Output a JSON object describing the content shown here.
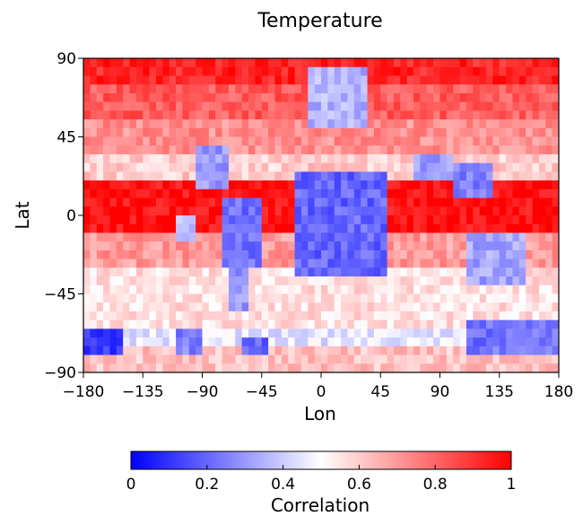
{
  "chart_data": {
    "type": "heatmap",
    "title": "Temperature",
    "xlabel": "Lon",
    "ylabel": "Lat",
    "xlim": [
      -180,
      180
    ],
    "ylim": [
      -90,
      90
    ],
    "xticks": [
      -180,
      -135,
      -90,
      -45,
      0,
      45,
      90,
      135,
      180
    ],
    "xtick_labels": [
      "−180",
      "−135",
      "−90",
      "−45",
      "0",
      "45",
      "90",
      "135",
      "180"
    ],
    "yticks": [
      90,
      45,
      0,
      -45,
      -90
    ],
    "ytick_labels": [
      "90",
      "45",
      "0",
      "−45",
      "−90"
    ],
    "grid": false,
    "colorbar": {
      "label": "Correlation",
      "range": [
        0,
        1
      ],
      "ticks": [
        0,
        0.2,
        0.4,
        0.6,
        0.8,
        1
      ],
      "tick_labels": [
        "0",
        "0.2",
        "0.4",
        "0.6",
        "0.8",
        "1"
      ],
      "colors": [
        "#0000ff",
        "#ffffff",
        "#ff0000"
      ],
      "placement": "bottom"
    },
    "grid_resolution_deg": 5,
    "bands": [
      {
        "lat": [
          75,
          90
        ],
        "correlation": 0.93
      },
      {
        "lat": [
          55,
          75
        ],
        "correlation": 0.82
      },
      {
        "lat": [
          35,
          55
        ],
        "correlation": 0.72
      },
      {
        "lat": [
          20,
          35
        ],
        "correlation": 0.6
      },
      {
        "lat": [
          -12,
          20
        ],
        "correlation": 0.97
      },
      {
        "lat": [
          -30,
          -12
        ],
        "correlation": 0.7
      },
      {
        "lat": [
          -65,
          -30
        ],
        "correlation": 0.56
      },
      {
        "lat": [
          -75,
          -65
        ],
        "correlation": 0.45
      },
      {
        "lat": [
          -90,
          -75
        ],
        "correlation": 0.62
      }
    ],
    "regions": [
      {
        "lon": [
          -95,
          -70
        ],
        "lat": [
          15,
          40
        ],
        "correlation": 0.3
      },
      {
        "lon": [
          -75,
          -45
        ],
        "lat": [
          -30,
          10
        ],
        "correlation": 0.22
      },
      {
        "lon": [
          -70,
          -55
        ],
        "lat": [
          -55,
          -30
        ],
        "correlation": 0.3
      },
      {
        "lon": [
          -110,
          -95
        ],
        "lat": [
          -15,
          0
        ],
        "correlation": 0.35
      },
      {
        "lon": [
          -20,
          50
        ],
        "lat": [
          -35,
          25
        ],
        "correlation": 0.2
      },
      {
        "lon": [
          -10,
          35
        ],
        "lat": [
          50,
          85
        ],
        "correlation": 0.35
      },
      {
        "lon": [
          70,
          100
        ],
        "lat": [
          20,
          35
        ],
        "correlation": 0.3
      },
      {
        "lon": [
          100,
          130
        ],
        "lat": [
          10,
          30
        ],
        "correlation": 0.25
      },
      {
        "lon": [
          110,
          155
        ],
        "lat": [
          -40,
          -10
        ],
        "correlation": 0.32
      },
      {
        "lon": [
          -180,
          -150
        ],
        "lat": [
          -80,
          -65
        ],
        "correlation": 0.1
      },
      {
        "lon": [
          -110,
          -90
        ],
        "lat": [
          -80,
          -65
        ],
        "correlation": 0.25
      },
      {
        "lon": [
          -60,
          -40
        ],
        "lat": [
          -80,
          -70
        ],
        "correlation": 0.2
      },
      {
        "lon": [
          110,
          180
        ],
        "lat": [
          -78,
          -62
        ],
        "correlation": 0.22
      }
    ]
  }
}
